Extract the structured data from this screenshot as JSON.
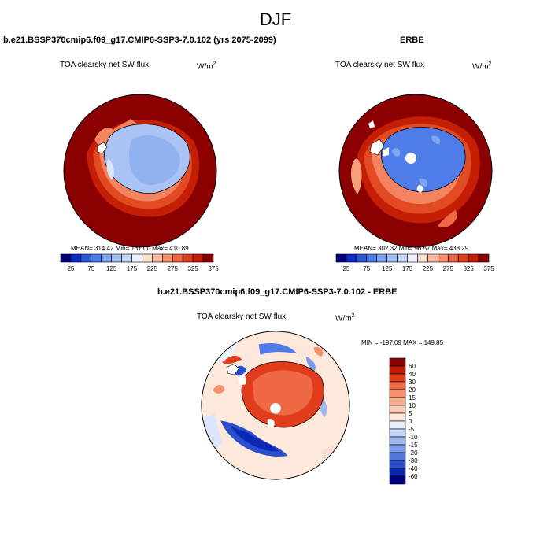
{
  "figure": {
    "title": "DJF"
  },
  "colors": {
    "ocean_hot": "#8b0000",
    "land_edge": "#000000",
    "missing": "#ffffff"
  },
  "chart_data": [
    {
      "type": "heatmap",
      "projection": "south-polar-stereographic",
      "title": "b.e21.BSSP370cmip6.f09_g17.CMIP6-SSP3-7.0.102 (yrs 2075-2099)",
      "variable_label": "TOA clearsky net SW flux",
      "units_base": "W/m",
      "units_exp": "2",
      "stats_text": "MEAN= 314.42   Min= 131.00   Max= 410.89",
      "stats": {
        "mean": 314.42,
        "min": 131.0,
        "max": 410.89
      },
      "colorbar": {
        "orientation": "horizontal",
        "tick_labels": [
          "25",
          "75",
          "125",
          "175",
          "225",
          "275",
          "325",
          "375"
        ],
        "colors": [
          "#00007f",
          "#0c2cc6",
          "#2a5ad8",
          "#4f7ce8",
          "#7fa4f0",
          "#a5c0f6",
          "#c9d9fa",
          "#eeefff",
          "#fce0cf",
          "#fbbca3",
          "#f6916c",
          "#ec6845",
          "#dc3e1e",
          "#c12006",
          "#8b0000"
        ]
      }
    },
    {
      "type": "heatmap",
      "projection": "south-polar-stereographic",
      "title": "ERBE",
      "variable_label": "TOA clearsky net SW flux",
      "units_base": "W/m",
      "units_exp": "2",
      "stats_text": "MEAN= 302.32   Min=  96.57   Max= 438.29",
      "stats": {
        "mean": 302.32,
        "min": 96.57,
        "max": 438.29
      },
      "colorbar": {
        "orientation": "horizontal",
        "tick_labels": [
          "25",
          "75",
          "125",
          "175",
          "225",
          "275",
          "325",
          "375"
        ],
        "colors": [
          "#00007f",
          "#0c2cc6",
          "#2a5ad8",
          "#4f7ce8",
          "#7fa4f0",
          "#a5c0f6",
          "#c9d9fa",
          "#eeefff",
          "#fce0cf",
          "#fbbca3",
          "#f6916c",
          "#ec6845",
          "#dc3e1e",
          "#c12006",
          "#8b0000"
        ]
      }
    },
    {
      "type": "heatmap",
      "projection": "south-polar-stereographic",
      "title": "b.e21.BSSP370cmip6.f09_g17.CMIP6-SSP3-7.0.102 - ERBE",
      "variable_label": "TOA clearsky net SW flux",
      "units_base": "W/m",
      "units_exp": "2",
      "stats_text": "MIN = -197.09  MAX = 149.85",
      "stats": {
        "min": -197.09,
        "max": 149.85
      },
      "colorbar": {
        "orientation": "vertical",
        "tick_labels": [
          "60",
          "40",
          "30",
          "20",
          "15",
          "10",
          "5",
          "0",
          "-5",
          "-10",
          "-15",
          "-20",
          "-30",
          "-40",
          "-60"
        ],
        "colors": [
          "#8b0000",
          "#c11a06",
          "#e13d1c",
          "#ef6a44",
          "#f58f6c",
          "#f9ae8f",
          "#fbcab2",
          "#fde8dc",
          "#e6eefc",
          "#c3d6f8",
          "#9fbaf1",
          "#7a9ce8",
          "#5077dd",
          "#2a4fce",
          "#0c28b4",
          "#00007f"
        ]
      }
    }
  ]
}
